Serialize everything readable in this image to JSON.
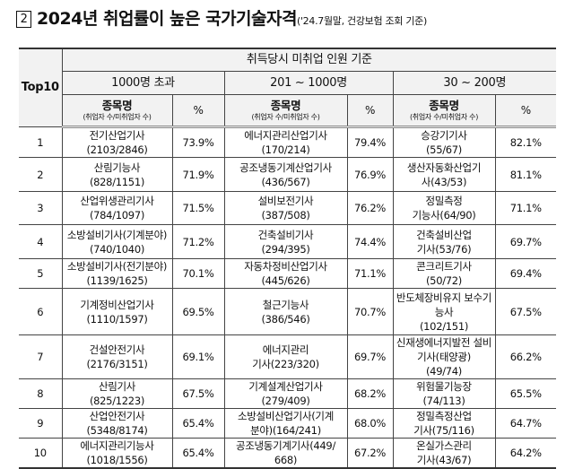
{
  "title": {
    "marker": "2",
    "main": "2024년 취업률이 높은 국가기술자격",
    "sub": "('24.7월말, 건강보험 조회 기준)"
  },
  "table": {
    "rank_header": "Top10",
    "group_header": "취득당시 미취업 인원 기준",
    "groups": [
      "1000명 초과",
      "201 ~ 1000명",
      "30 ~ 200명"
    ],
    "name_header": "종목명",
    "name_subheader": "(취업자 수/미취업자 수)",
    "pct_header": "%",
    "rows": [
      {
        "rank": "1",
        "c": [
          [
            "전기산업기사",
            "(2103/2846)",
            "73.9%"
          ],
          [
            "에너지관리산업기사",
            "(170/214)",
            "79.4%"
          ],
          [
            "승강기기사",
            "(55/67)",
            "82.1%"
          ]
        ]
      },
      {
        "rank": "2",
        "c": [
          [
            "산림기능사",
            "(828/1151)",
            "71.9%"
          ],
          [
            "공조냉동기계산업기사",
            "(436/567)",
            "76.9%"
          ],
          [
            "생산자동화산업기",
            "사(43/53)",
            "81.1%"
          ]
        ]
      },
      {
        "rank": "3",
        "c": [
          [
            "산업위생관리기사",
            "(784/1097)",
            "71.5%"
          ],
          [
            "설비보전기사",
            "(387/508)",
            "76.2%"
          ],
          [
            "정밀측정",
            "기능사(64/90)",
            "71.1%"
          ]
        ]
      },
      {
        "rank": "4",
        "c": [
          [
            "소방설비기사(기계분야)",
            "(740/1040)",
            "71.2%"
          ],
          [
            "건축설비기사",
            "(294/395)",
            "74.4%"
          ],
          [
            "건축설비산업",
            "기사(53/76)",
            "69.7%"
          ]
        ]
      },
      {
        "rank": "5",
        "c": [
          [
            "소방설비기사(전기분야)",
            "(1139/1625)",
            "70.1%"
          ],
          [
            "자동차정비산업기사",
            "(445/626)",
            "71.1%"
          ],
          [
            "콘크리트기사",
            "(50/72)",
            "69.4%"
          ]
        ]
      },
      {
        "rank": "6",
        "c": [
          [
            "기계정비산업기사",
            "(1110/1597)",
            "69.5%"
          ],
          [
            "철근기능사",
            "(386/546)",
            "70.7%"
          ],
          [
            "반도체장비유지 보수기능사",
            "(102/151)",
            "67.5%"
          ]
        ]
      },
      {
        "rank": "7",
        "c": [
          [
            "건설안전기사",
            "(2176/3151)",
            "69.1%"
          ],
          [
            "에너지관리",
            "기사(223/320)",
            "69.7%"
          ],
          [
            "신재생에너지발전 설비기사(태양광)",
            "(49/74)",
            "66.2%"
          ]
        ]
      },
      {
        "rank": "8",
        "c": [
          [
            "산림기사",
            "(825/1223)",
            "67.5%"
          ],
          [
            "기계설계산업기사",
            "(279/409)",
            "68.2%"
          ],
          [
            "위험물기능장",
            "(74/113)",
            "65.5%"
          ]
        ]
      },
      {
        "rank": "9",
        "c": [
          [
            "산업안전기사",
            "(5348/8174)",
            "65.4%"
          ],
          [
            "소방설비산업기사(기계",
            "분야)(164/241)",
            "68.0%"
          ],
          [
            "정밀측정산업",
            "기사(75/116)",
            "64.7%"
          ]
        ]
      },
      {
        "rank": "10",
        "c": [
          [
            "에너지관리기능사",
            "(1018/1556)",
            "65.4%"
          ],
          [
            "공조냉동기계기사(449/",
            "668)",
            "67.2%"
          ],
          [
            "온실가스관리",
            "기사(43/67)",
            "64.2%"
          ]
        ]
      }
    ]
  }
}
